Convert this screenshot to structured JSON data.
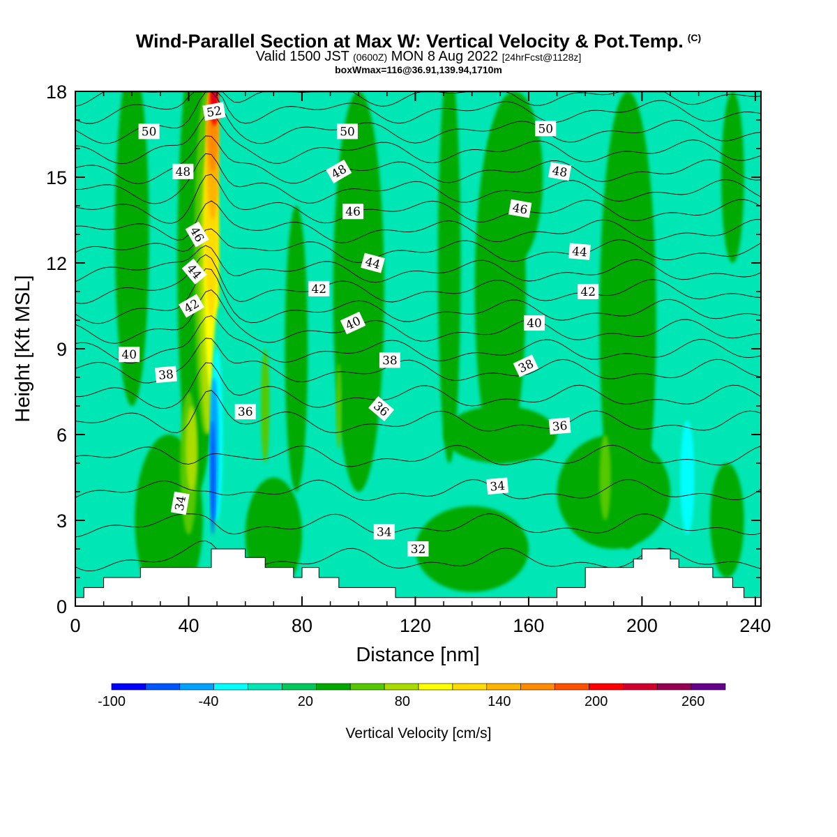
{
  "header": {
    "title": "Wind-Parallel Section at Max W: Vertical Velocity & Pot.Temp.",
    "title_copyright": "(C)",
    "valid_prefix": "Valid 1500 JST",
    "valid_utc": "(0600Z)",
    "valid_date": "MON 8 Aug 2022",
    "valid_fcst": "[24hrFcst@1128z]",
    "box_info": "boxWmax=116@36.91,139.94,1710m"
  },
  "chart_data": {
    "type": "heatmap",
    "xlabel": "Distance [nm]",
    "ylabel": "Height [Kft MSL]",
    "xlim": [
      0,
      242
    ],
    "ylim": [
      0,
      18
    ],
    "x_ticks": [
      "0",
      "40",
      "80",
      "120",
      "160",
      "200",
      "240"
    ],
    "x_tick_values": [
      0,
      40,
      80,
      120,
      160,
      200,
      240
    ],
    "y_ticks": [
      "0",
      "3",
      "6",
      "9",
      "12",
      "15",
      "18"
    ],
    "y_tick_values": [
      0,
      3,
      6,
      9,
      12,
      15,
      18
    ],
    "colorbar": {
      "title": "Vertical Velocity [cm/s]",
      "labels": [
        "-100",
        "-40",
        "20",
        "80",
        "140",
        "200",
        "260"
      ],
      "label_values": [
        -100,
        -40,
        20,
        80,
        140,
        200,
        260
      ],
      "min": -100,
      "max": 280,
      "step": 20,
      "colors": [
        "#0000ff",
        "#0055ff",
        "#00a2ff",
        "#00ffff",
        "#00e6b4",
        "#00c85a",
        "#00aa00",
        "#55c800",
        "#aadc00",
        "#ffff00",
        "#ffdc00",
        "#ffb400",
        "#ff8c00",
        "#ff5000",
        "#ff0000",
        "#d2002d",
        "#960050",
        "#64008c"
      ]
    },
    "field_base_color": "#00e6b4",
    "terrain_color": "#ffffff",
    "terrain_profile": [
      [
        0,
        0.3
      ],
      [
        3,
        0.3
      ],
      [
        3,
        0.65
      ],
      [
        10,
        0.65
      ],
      [
        10,
        1.0
      ],
      [
        23,
        1.0
      ],
      [
        23,
        1.35
      ],
      [
        48,
        1.35
      ],
      [
        48,
        2.0
      ],
      [
        60,
        2.0
      ],
      [
        60,
        1.7
      ],
      [
        67,
        1.7
      ],
      [
        67,
        1.35
      ],
      [
        77,
        1.35
      ],
      [
        77,
        1.0
      ],
      [
        80,
        1.0
      ],
      [
        80,
        1.35
      ],
      [
        86,
        1.35
      ],
      [
        86,
        1.0
      ],
      [
        93,
        1.0
      ],
      [
        93,
        0.65
      ],
      [
        113,
        0.65
      ],
      [
        113,
        0.3
      ],
      [
        170,
        0.3
      ],
      [
        170,
        0.65
      ],
      [
        180,
        0.65
      ],
      [
        180,
        1.35
      ],
      [
        197,
        1.35
      ],
      [
        197,
        1.65
      ],
      [
        200,
        1.65
      ],
      [
        200,
        2.0
      ],
      [
        210,
        2.0
      ],
      [
        210,
        1.65
      ],
      [
        213,
        1.65
      ],
      [
        213,
        1.35
      ],
      [
        225,
        1.35
      ],
      [
        225,
        1.0
      ],
      [
        232,
        1.0
      ],
      [
        232,
        0.65
      ],
      [
        236,
        0.65
      ],
      [
        236,
        0.3
      ],
      [
        242,
        0.3
      ]
    ],
    "velocity_regions": [
      {
        "value": 30,
        "x": 20,
        "y": 13,
        "rx": 6,
        "ry": 6
      },
      {
        "value": 30,
        "x": 43,
        "y": 12,
        "rx": 7,
        "ry": 8
      },
      {
        "value": 30,
        "x": 78,
        "y": 9,
        "rx": 4,
        "ry": 5
      },
      {
        "value": 30,
        "x": 100,
        "y": 11,
        "rx": 9,
        "ry": 7
      },
      {
        "value": 30,
        "x": 132,
        "y": 12,
        "rx": 4,
        "ry": 7
      },
      {
        "value": 30,
        "x": 150,
        "y": 11,
        "rx": 9,
        "ry": 6
      },
      {
        "value": 30,
        "x": 155,
        "y": 15,
        "rx": 10,
        "ry": 3
      },
      {
        "value": 30,
        "x": 195,
        "y": 10,
        "rx": 10,
        "ry": 8
      },
      {
        "value": 30,
        "x": 232,
        "y": 15,
        "rx": 4,
        "ry": 3
      },
      {
        "value": 30,
        "x": 150,
        "y": 6,
        "rx": 20,
        "ry": 1
      },
      {
        "value": 30,
        "x": 33,
        "y": 3,
        "rx": 12,
        "ry": 3
      },
      {
        "value": 30,
        "x": 70,
        "y": 2.5,
        "rx": 10,
        "ry": 2
      },
      {
        "value": 30,
        "x": 190,
        "y": 4,
        "rx": 20,
        "ry": 2
      },
      {
        "value": 30,
        "x": 140,
        "y": 2,
        "rx": 20,
        "ry": 1.5
      },
      {
        "value": 30,
        "x": 230,
        "y": 3,
        "rx": 6,
        "ry": 2
      },
      {
        "value": 40,
        "x": 40,
        "y": 5,
        "rx": 3,
        "ry": 2.5
      },
      {
        "value": 40,
        "x": 187,
        "y": 4.5,
        "rx": 2,
        "ry": 1.5
      },
      {
        "value": 40,
        "x": 67,
        "y": 7,
        "rx": 1.5,
        "ry": 2
      },
      {
        "value": 40,
        "x": 93,
        "y": 7,
        "rx": 1,
        "ry": 1.5
      },
      {
        "value": 60,
        "x": 41,
        "y": 5.5,
        "rx": 2,
        "ry": 1.5
      },
      {
        "value": 40,
        "x": 46,
        "y": 12,
        "rx": 4,
        "ry": 6
      },
      {
        "value": 60,
        "x": 47,
        "y": 11,
        "rx": 3.2,
        "ry": 5
      },
      {
        "value": 80,
        "x": 48,
        "y": 12,
        "rx": 2.6,
        "ry": 4.5
      },
      {
        "value": 100,
        "x": 48,
        "y": 14,
        "rx": 2.4,
        "ry": 4
      },
      {
        "value": 120,
        "x": 48.5,
        "y": 16,
        "rx": 2.2,
        "ry": 2.5
      },
      {
        "value": 140,
        "x": 48.5,
        "y": 17,
        "rx": 2,
        "ry": 1.8
      },
      {
        "value": 180,
        "x": 49,
        "y": 17.6,
        "rx": 1.5,
        "ry": 0.8
      },
      {
        "value": 200,
        "x": 49,
        "y": 18,
        "rx": 1,
        "ry": 0.4
      },
      {
        "value": -20,
        "x": 51,
        "y": 7,
        "rx": 2.8,
        "ry": 3.5
      },
      {
        "value": -40,
        "x": 50,
        "y": 6,
        "rx": 2,
        "ry": 3
      },
      {
        "value": -60,
        "x": 49,
        "y": 5.5,
        "rx": 1.5,
        "ry": 2.5
      },
      {
        "value": -80,
        "x": 48.5,
        "y": 4.5,
        "rx": 0.8,
        "ry": 2
      },
      {
        "value": -40,
        "x": 216,
        "y": 4.5,
        "rx": 2.5,
        "ry": 2
      },
      {
        "value": -20,
        "x": 112,
        "y": 4.5,
        "rx": 0.8,
        "ry": 0.8
      }
    ],
    "theta_contours": [
      {
        "level": 32,
        "base": 1.6
      },
      {
        "level": 33,
        "base": 2.8
      },
      {
        "level": 34,
        "base": 4.0
      },
      {
        "level": 35,
        "base": 5.2
      },
      {
        "level": 36,
        "base": 6.4
      },
      {
        "level": 37,
        "base": 7.3
      },
      {
        "level": 38,
        "base": 8.2
      },
      {
        "level": 39,
        "base": 8.9
      },
      {
        "level": 40,
        "base": 9.6
      },
      {
        "level": 41,
        "base": 10.3
      },
      {
        "level": 42,
        "base": 11.0
      },
      {
        "level": 43,
        "base": 11.7
      },
      {
        "level": 44,
        "base": 12.4
      },
      {
        "level": 45,
        "base": 13.1
      },
      {
        "level": 46,
        "base": 13.8
      },
      {
        "level": 47,
        "base": 14.5
      },
      {
        "level": 48,
        "base": 15.2
      },
      {
        "level": 49,
        "base": 15.9
      },
      {
        "level": 50,
        "base": 16.6
      },
      {
        "level": 51,
        "base": 17.3
      },
      {
        "level": 52,
        "base": 17.9
      }
    ],
    "contour_labels": [
      {
        "text": "52",
        "x": 49,
        "y": 17.3,
        "angle": -10
      },
      {
        "text": "50",
        "x": 26,
        "y": 16.6,
        "angle": 0
      },
      {
        "text": "50",
        "x": 96,
        "y": 16.6,
        "angle": 0
      },
      {
        "text": "50",
        "x": 166,
        "y": 16.7,
        "angle": 0
      },
      {
        "text": "48",
        "x": 38,
        "y": 15.2,
        "angle": 0
      },
      {
        "text": "48",
        "x": 93,
        "y": 15.2,
        "angle": -30
      },
      {
        "text": "48",
        "x": 171,
        "y": 15.2,
        "angle": 10
      },
      {
        "text": "46",
        "x": 98,
        "y": 13.8,
        "angle": 0
      },
      {
        "text": "46",
        "x": 157,
        "y": 13.9,
        "angle": 10
      },
      {
        "text": "46",
        "x": 43,
        "y": 13.0,
        "angle": 60
      },
      {
        "text": "44",
        "x": 42,
        "y": 11.7,
        "angle": 50
      },
      {
        "text": "44",
        "x": 105,
        "y": 12.0,
        "angle": 15
      },
      {
        "text": "44",
        "x": 178,
        "y": 12.4,
        "angle": 5
      },
      {
        "text": "42",
        "x": 41,
        "y": 10.5,
        "angle": -30
      },
      {
        "text": "42",
        "x": 86,
        "y": 11.1,
        "angle": 0
      },
      {
        "text": "42",
        "x": 181,
        "y": 11.0,
        "angle": 0
      },
      {
        "text": "40",
        "x": 19,
        "y": 8.8,
        "angle": 0
      },
      {
        "text": "40",
        "x": 98,
        "y": 9.9,
        "angle": -25
      },
      {
        "text": "40",
        "x": 162,
        "y": 9.9,
        "angle": 0
      },
      {
        "text": "38",
        "x": 32,
        "y": 8.1,
        "angle": -5
      },
      {
        "text": "38",
        "x": 111,
        "y": 8.6,
        "angle": 0
      },
      {
        "text": "38",
        "x": 159,
        "y": 8.4,
        "angle": -25
      },
      {
        "text": "36",
        "x": 60,
        "y": 6.8,
        "angle": 0
      },
      {
        "text": "36",
        "x": 108,
        "y": 6.9,
        "angle": 40
      },
      {
        "text": "36",
        "x": 171,
        "y": 6.3,
        "angle": -5
      },
      {
        "text": "34",
        "x": 37,
        "y": 3.6,
        "angle": -80
      },
      {
        "text": "34",
        "x": 109,
        "y": 2.6,
        "angle": 0
      },
      {
        "text": "34",
        "x": 149,
        "y": 4.2,
        "angle": -5
      },
      {
        "text": "32",
        "x": 121,
        "y": 2.0,
        "angle": 0
      }
    ]
  }
}
